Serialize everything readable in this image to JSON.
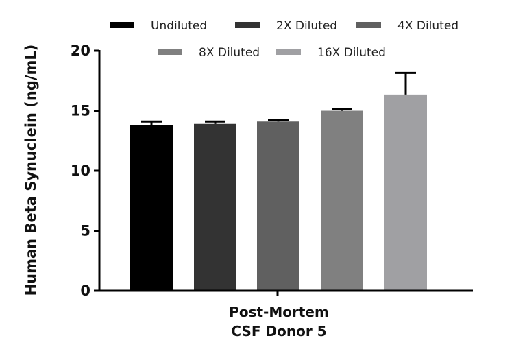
{
  "chart_data": {
    "type": "bar",
    "title": "",
    "ylabel": "Human Beta Synuclein (ng/mL)",
    "xlabel": "",
    "category_lines": [
      "Post-Mortem",
      "CSF Donor 5"
    ],
    "ylim": [
      0,
      20
    ],
    "yticks": [
      0,
      5,
      10,
      15,
      20
    ],
    "ytick_labels": [
      "0",
      "5",
      "10",
      "15",
      "20"
    ],
    "legend_position": "top",
    "series": [
      {
        "name": "Undiluted",
        "value": 13.8,
        "error": 0.3,
        "color": "#000000"
      },
      {
        "name": "2X Diluted",
        "value": 13.9,
        "error": 0.2,
        "color": "#333333"
      },
      {
        "name": "4X Diluted",
        "value": 14.1,
        "error": 0.1,
        "color": "#606060"
      },
      {
        "name": "8X Diluted",
        "value": 15.0,
        "error": 0.15,
        "color": "#808080"
      },
      {
        "name": "16X Diluted",
        "value": 16.35,
        "error": 1.8,
        "color": "#a0a0a3"
      }
    ]
  }
}
